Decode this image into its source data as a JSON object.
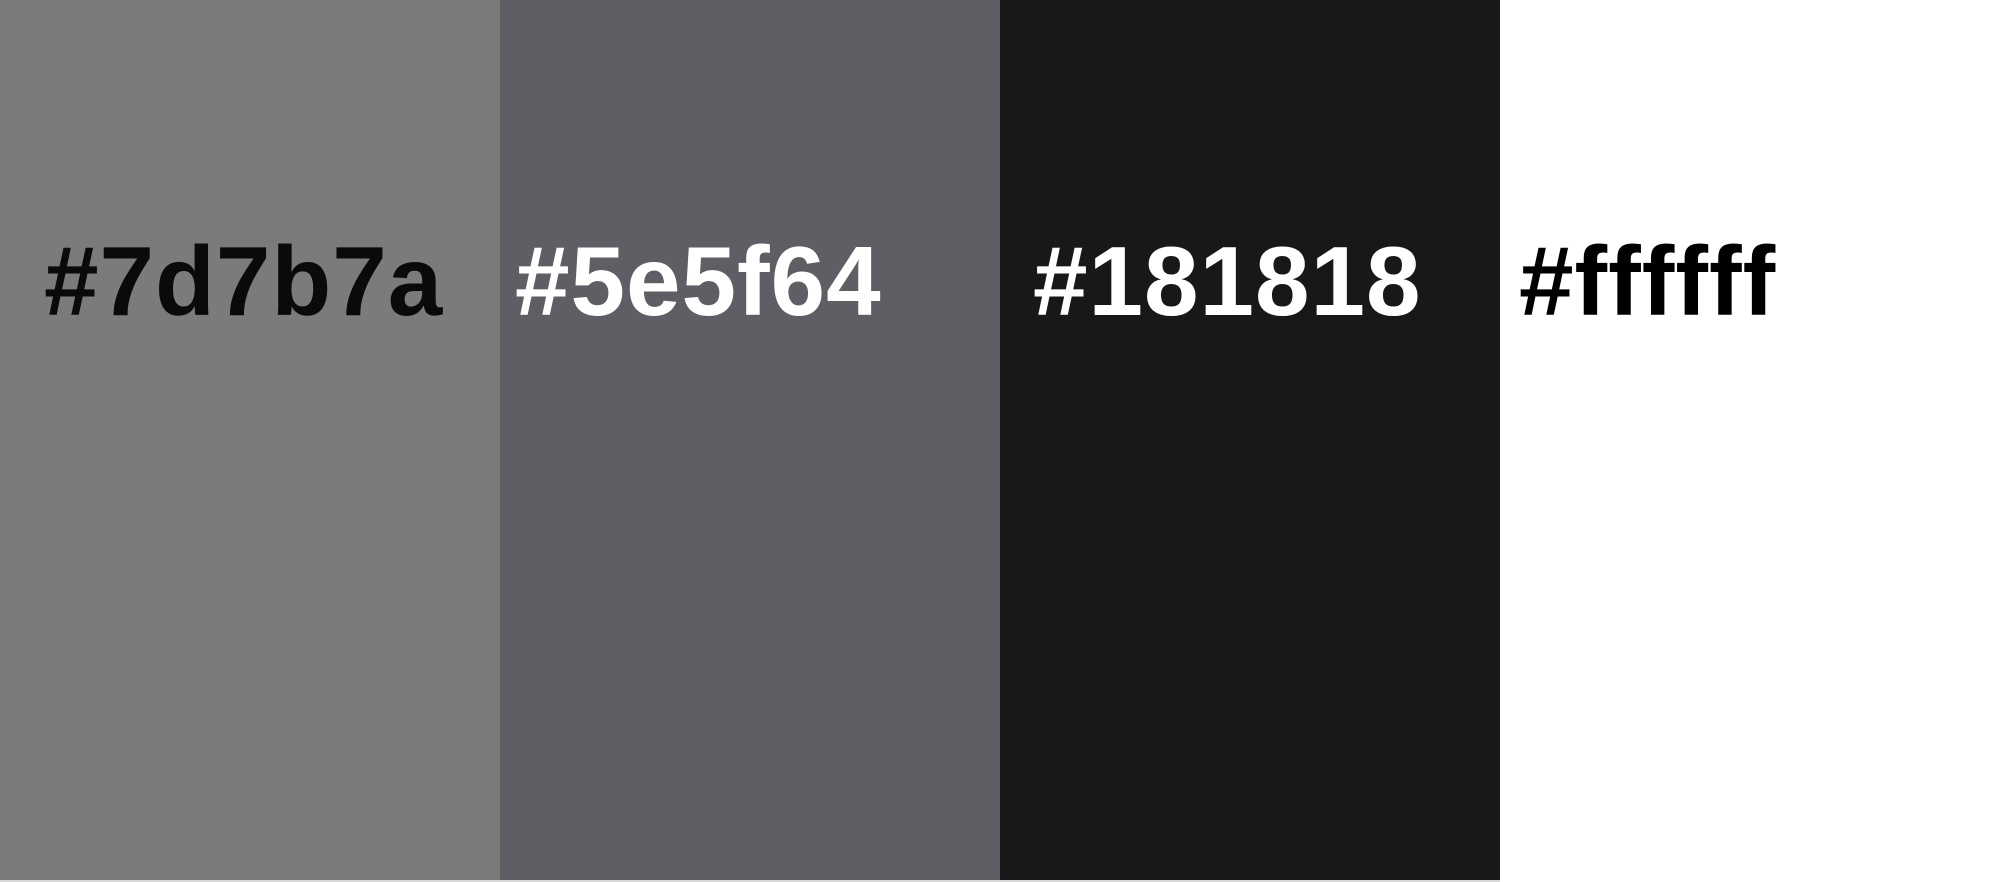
{
  "swatches": [
    {
      "label": "#7d7b7a",
      "color": "#7d7b7a",
      "text_color": "#0a0a0a"
    },
    {
      "label": "#5e5f64",
      "color": "#5e5f64",
      "text_color": "#ffffff"
    },
    {
      "label": "#181818",
      "color": "#181818",
      "text_color": "#ffffff"
    },
    {
      "label": "#ffffff",
      "color": "#ffffff",
      "text_color": "#000000"
    }
  ]
}
